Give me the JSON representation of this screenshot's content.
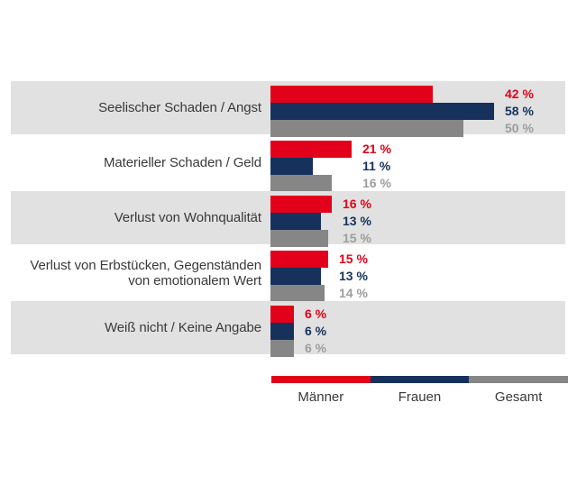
{
  "page": {
    "background": "#ffffff",
    "row_band_color": "#e1e1e1",
    "category_text_color": "#3a3a39"
  },
  "chart_data": {
    "type": "bar",
    "orientation": "horizontal",
    "title": "",
    "xlabel": "",
    "ylabel": "",
    "unit": "%",
    "xlim": [
      0,
      60
    ],
    "grid": false,
    "legend_position": "bottom-right",
    "categories": [
      "Seelischer Schaden / Angst",
      "Materieller Schaden / Geld",
      "Verlust von Wohnqualität",
      "Verlust von Erbstücken, Gegenständen von emotionalem Wert",
      "Weiß nicht / Keine Angabe"
    ],
    "series": [
      {
        "name": "Männer",
        "color": "#e2001a",
        "values": [
          42,
          21,
          16,
          15,
          6
        ]
      },
      {
        "name": "Frauen",
        "color": "#16325c",
        "values": [
          58,
          11,
          13,
          13,
          6
        ]
      },
      {
        "name": "Gesamt",
        "color": "#868686",
        "values": [
          50,
          16,
          15,
          14,
          6
        ]
      }
    ],
    "value_label_colors": [
      "#e2001a",
      "#16325c",
      "#9d9d9c"
    ],
    "rows": [
      {
        "label_lines": [
          "Seelischer Schaden / Angst"
        ],
        "values": [
          42,
          58,
          50
        ],
        "value_labels": [
          "42 %",
          "58 %",
          "50 %"
        ]
      },
      {
        "label_lines": [
          "Materieller Schaden / Geld"
        ],
        "values": [
          21,
          11,
          16
        ],
        "value_labels": [
          "21 %",
          "11 %",
          "16 %"
        ]
      },
      {
        "label_lines": [
          "Verlust von Wohnqualität"
        ],
        "values": [
          16,
          13,
          15
        ],
        "value_labels": [
          "16 %",
          "13 %",
          "15 %"
        ]
      },
      {
        "label_lines": [
          "Verlust von Erbstücken, Gegenständen",
          "von emotionalem Wert"
        ],
        "values": [
          15,
          13,
          14
        ],
        "value_labels": [
          "15 %",
          "13 %",
          "14 %"
        ]
      },
      {
        "label_lines": [
          "Weiß nicht / Keine Angabe"
        ],
        "values": [
          6,
          6,
          6
        ],
        "value_labels": [
          "6 %",
          "6 %",
          "6 %"
        ]
      }
    ],
    "legend": {
      "entries": [
        {
          "label": "Männer",
          "color": "#e2001a"
        },
        {
          "label": "Frauen",
          "color": "#16325c"
        },
        {
          "label": "Gesamt",
          "color": "#868686"
        }
      ]
    }
  }
}
